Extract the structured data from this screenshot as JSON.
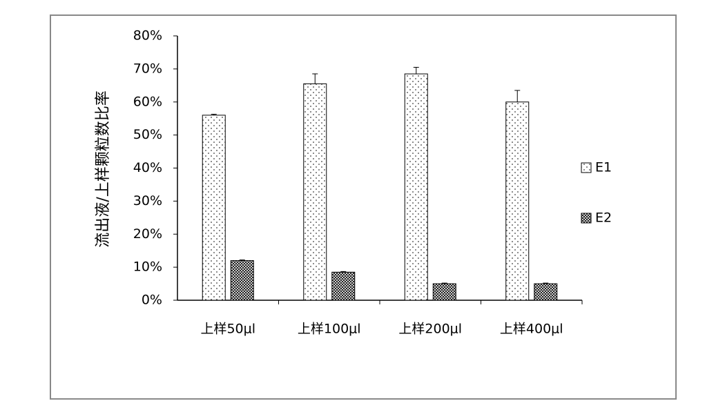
{
  "chart_data": {
    "type": "bar",
    "y_label": "流出液/上样颗粒数比率",
    "categories": [
      "上样50μl",
      "上样100μl",
      "上样200μl",
      "上样400μl"
    ],
    "series": [
      {
        "name": "E1",
        "color": "#ffffff",
        "pattern": "dots",
        "values": [
          56,
          65.5,
          68.5,
          60
        ],
        "errors": [
          0.3,
          3,
          2,
          3.5
        ]
      },
      {
        "name": "E2",
        "color": "#ffffff",
        "pattern": "crosshatch",
        "values": [
          12,
          8.5,
          5,
          5
        ],
        "errors": [
          0.2,
          0.2,
          0.2,
          0.2
        ]
      }
    ],
    "ylim": [
      0,
      80
    ],
    "yticks": [
      {
        "value": 0,
        "label": "0%"
      },
      {
        "value": 10,
        "label": "10%"
      },
      {
        "value": 20,
        "label": "20%"
      },
      {
        "value": 30,
        "label": "30%"
      },
      {
        "value": 40,
        "label": "40%"
      },
      {
        "value": 50,
        "label": "50%"
      },
      {
        "value": 60,
        "label": "60%"
      },
      {
        "value": 70,
        "label": "70%"
      },
      {
        "value": 80,
        "label": "80%"
      }
    ],
    "legend": "right"
  }
}
